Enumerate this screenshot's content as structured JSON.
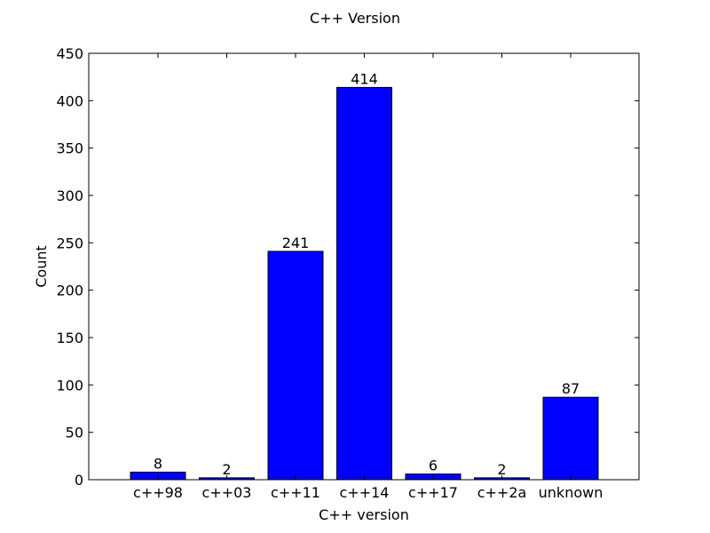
{
  "chart_data": {
    "type": "bar",
    "title": "C++ Version",
    "xlabel": "C++ version",
    "ylabel": "Count",
    "categories": [
      "c++98",
      "c++03",
      "c++11",
      "c++14",
      "c++17",
      "c++2a",
      "unknown"
    ],
    "values": [
      8,
      2,
      241,
      414,
      6,
      2,
      87
    ],
    "data_labels": [
      "8",
      "2",
      "241",
      "414",
      "6",
      "2",
      "87"
    ],
    "ylim": [
      0,
      450
    ],
    "yticks": [
      0,
      50,
      100,
      150,
      200,
      250,
      300,
      350,
      400,
      450
    ],
    "ytick_labels": [
      "0",
      "50",
      "100",
      "150",
      "200",
      "250",
      "300",
      "350",
      "400",
      "450"
    ],
    "grid": false,
    "bar_color": "#0000ff"
  }
}
